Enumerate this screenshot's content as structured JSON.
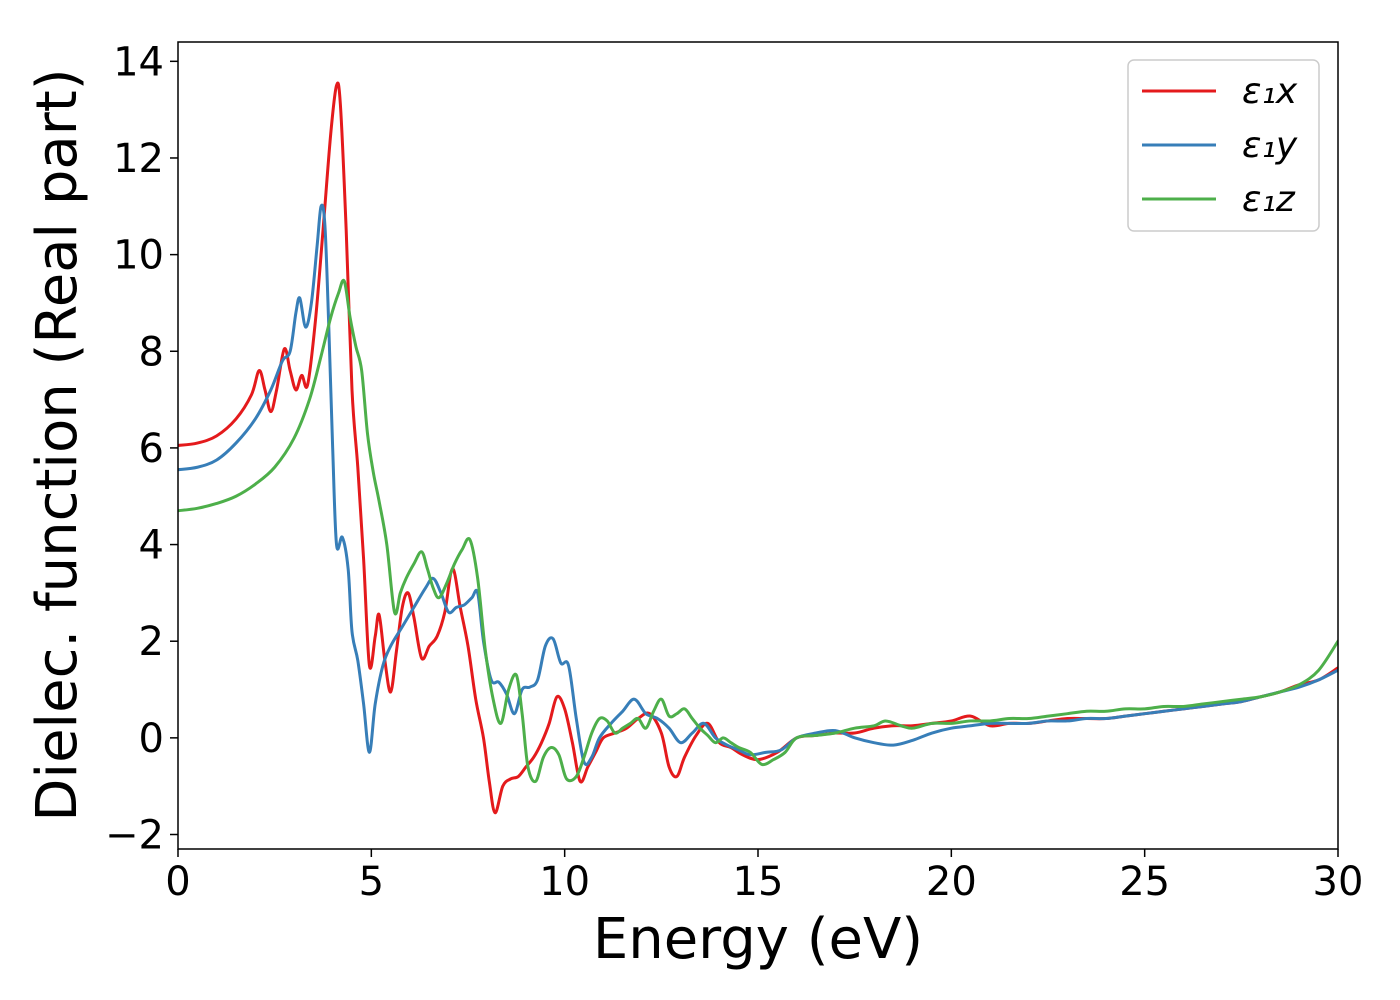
{
  "chart_data": {
    "type": "line",
    "xlabel": "Energy (eV)",
    "ylabel": "Dielec. function (Real part)",
    "xlim": [
      0,
      30
    ],
    "ylim": [
      -2.3,
      14.4
    ],
    "xticks": [
      0,
      5,
      10,
      15,
      20,
      25,
      30
    ],
    "xtick_labels": [
      "0",
      "5",
      "10",
      "15",
      "20",
      "25",
      "30"
    ],
    "yticks": [
      -2,
      0,
      2,
      4,
      6,
      8,
      10,
      12,
      14
    ],
    "ytick_labels": [
      "−2",
      "0",
      "2",
      "4",
      "6",
      "8",
      "10",
      "12",
      "14"
    ],
    "grid": false,
    "legend_position": "top-right",
    "series": [
      {
        "name": "ε₁x",
        "color": "#e41a1c",
        "points": [
          [
            0,
            6.05
          ],
          [
            0.5,
            6.1
          ],
          [
            1.0,
            6.25
          ],
          [
            1.5,
            6.6
          ],
          [
            1.9,
            7.1
          ],
          [
            2.1,
            7.6
          ],
          [
            2.25,
            7.2
          ],
          [
            2.4,
            6.75
          ],
          [
            2.55,
            7.2
          ],
          [
            2.75,
            8.05
          ],
          [
            2.9,
            7.6
          ],
          [
            3.05,
            7.2
          ],
          [
            3.2,
            7.5
          ],
          [
            3.35,
            7.3
          ],
          [
            3.55,
            8.6
          ],
          [
            3.75,
            10.5
          ],
          [
            3.95,
            12.5
          ],
          [
            4.1,
            13.5
          ],
          [
            4.2,
            13.1
          ],
          [
            4.35,
            10.5
          ],
          [
            4.5,
            7.2
          ],
          [
            4.65,
            5.6
          ],
          [
            4.8,
            3.7
          ],
          [
            4.95,
            1.5
          ],
          [
            5.1,
            2.1
          ],
          [
            5.2,
            2.55
          ],
          [
            5.35,
            1.6
          ],
          [
            5.5,
            0.95
          ],
          [
            5.65,
            1.8
          ],
          [
            5.8,
            2.7
          ],
          [
            5.95,
            3.0
          ],
          [
            6.1,
            2.5
          ],
          [
            6.3,
            1.65
          ],
          [
            6.5,
            1.9
          ],
          [
            6.7,
            2.1
          ],
          [
            6.9,
            2.6
          ],
          [
            7.1,
            3.5
          ],
          [
            7.3,
            2.7
          ],
          [
            7.5,
            1.9
          ],
          [
            7.7,
            0.8
          ],
          [
            7.9,
            0.0
          ],
          [
            8.05,
            -0.9
          ],
          [
            8.2,
            -1.55
          ],
          [
            8.4,
            -1.0
          ],
          [
            8.6,
            -0.85
          ],
          [
            8.8,
            -0.8
          ],
          [
            9.0,
            -0.6
          ],
          [
            9.2,
            -0.4
          ],
          [
            9.4,
            -0.1
          ],
          [
            9.6,
            0.3
          ],
          [
            9.8,
            0.85
          ],
          [
            10.0,
            0.6
          ],
          [
            10.2,
            -0.1
          ],
          [
            10.4,
            -0.9
          ],
          [
            10.6,
            -0.6
          ],
          [
            10.8,
            -0.3
          ],
          [
            11.0,
            0.0
          ],
          [
            11.3,
            0.1
          ],
          [
            11.6,
            0.2
          ],
          [
            11.9,
            0.4
          ],
          [
            12.2,
            0.5
          ],
          [
            12.5,
            0.1
          ],
          [
            12.7,
            -0.6
          ],
          [
            12.9,
            -0.8
          ],
          [
            13.1,
            -0.4
          ],
          [
            13.4,
            0.05
          ],
          [
            13.7,
            0.3
          ],
          [
            14.0,
            -0.1
          ],
          [
            14.3,
            -0.2
          ],
          [
            14.6,
            -0.35
          ],
          [
            15.0,
            -0.45
          ],
          [
            15.5,
            -0.3
          ],
          [
            16.0,
            0.0
          ],
          [
            16.5,
            0.05
          ],
          [
            17.0,
            0.1
          ],
          [
            17.5,
            0.1
          ],
          [
            18.0,
            0.2
          ],
          [
            18.5,
            0.25
          ],
          [
            19.0,
            0.25
          ],
          [
            19.5,
            0.3
          ],
          [
            20.0,
            0.35
          ],
          [
            20.5,
            0.45
          ],
          [
            21.0,
            0.25
          ],
          [
            21.5,
            0.3
          ],
          [
            22.0,
            0.3
          ],
          [
            22.5,
            0.35
          ],
          [
            23.0,
            0.4
          ],
          [
            23.5,
            0.4
          ],
          [
            24.0,
            0.4
          ],
          [
            24.5,
            0.45
          ],
          [
            25.0,
            0.5
          ],
          [
            25.5,
            0.55
          ],
          [
            26.0,
            0.6
          ],
          [
            26.5,
            0.65
          ],
          [
            27.0,
            0.7
          ],
          [
            27.5,
            0.75
          ],
          [
            28.0,
            0.85
          ],
          [
            28.5,
            0.95
          ],
          [
            29.0,
            1.1
          ],
          [
            29.5,
            1.2
          ],
          [
            30.0,
            1.45
          ]
        ]
      },
      {
        "name": "ε₁y",
        "color": "#377eb8",
        "points": [
          [
            0,
            5.55
          ],
          [
            0.5,
            5.6
          ],
          [
            1.0,
            5.75
          ],
          [
            1.5,
            6.1
          ],
          [
            2.0,
            6.6
          ],
          [
            2.4,
            7.2
          ],
          [
            2.7,
            7.8
          ],
          [
            2.9,
            8.0
          ],
          [
            3.05,
            8.8
          ],
          [
            3.15,
            9.1
          ],
          [
            3.3,
            8.5
          ],
          [
            3.45,
            9.0
          ],
          [
            3.6,
            10.2
          ],
          [
            3.7,
            11.0
          ],
          [
            3.8,
            10.6
          ],
          [
            3.9,
            8.5
          ],
          [
            4.0,
            6.0
          ],
          [
            4.1,
            4.0
          ],
          [
            4.25,
            4.15
          ],
          [
            4.4,
            3.5
          ],
          [
            4.5,
            2.2
          ],
          [
            4.65,
            1.6
          ],
          [
            4.8,
            0.7
          ],
          [
            4.95,
            -0.3
          ],
          [
            5.1,
            0.7
          ],
          [
            5.3,
            1.5
          ],
          [
            5.5,
            1.9
          ],
          [
            5.8,
            2.3
          ],
          [
            6.1,
            2.7
          ],
          [
            6.4,
            3.1
          ],
          [
            6.6,
            3.3
          ],
          [
            6.8,
            3.0
          ],
          [
            7.0,
            2.6
          ],
          [
            7.2,
            2.7
          ],
          [
            7.4,
            2.75
          ],
          [
            7.6,
            2.9
          ],
          [
            7.75,
            3.0
          ],
          [
            7.9,
            2.0
          ],
          [
            8.1,
            1.2
          ],
          [
            8.3,
            1.15
          ],
          [
            8.5,
            0.9
          ],
          [
            8.7,
            0.5
          ],
          [
            8.9,
            1.0
          ],
          [
            9.1,
            1.05
          ],
          [
            9.3,
            1.2
          ],
          [
            9.5,
            1.9
          ],
          [
            9.7,
            2.05
          ],
          [
            9.9,
            1.55
          ],
          [
            10.1,
            1.5
          ],
          [
            10.3,
            0.4
          ],
          [
            10.5,
            -0.5
          ],
          [
            10.7,
            -0.4
          ],
          [
            10.9,
            0.0
          ],
          [
            11.2,
            0.3
          ],
          [
            11.5,
            0.55
          ],
          [
            11.8,
            0.8
          ],
          [
            12.1,
            0.5
          ],
          [
            12.4,
            0.4
          ],
          [
            12.7,
            0.2
          ],
          [
            13.0,
            -0.1
          ],
          [
            13.3,
            0.1
          ],
          [
            13.6,
            0.3
          ],
          [
            13.9,
            0.0
          ],
          [
            14.2,
            -0.15
          ],
          [
            14.5,
            -0.25
          ],
          [
            14.8,
            -0.35
          ],
          [
            15.2,
            -0.3
          ],
          [
            15.6,
            -0.25
          ],
          [
            16.0,
            0.0
          ],
          [
            16.5,
            0.1
          ],
          [
            17.0,
            0.15
          ],
          [
            17.5,
            0.0
          ],
          [
            18.0,
            -0.1
          ],
          [
            18.5,
            -0.15
          ],
          [
            19.0,
            -0.05
          ],
          [
            19.5,
            0.1
          ],
          [
            20.0,
            0.2
          ],
          [
            20.5,
            0.25
          ],
          [
            21.0,
            0.3
          ],
          [
            21.5,
            0.3
          ],
          [
            22.0,
            0.3
          ],
          [
            22.5,
            0.35
          ],
          [
            23.0,
            0.35
          ],
          [
            23.5,
            0.4
          ],
          [
            24.0,
            0.4
          ],
          [
            24.5,
            0.45
          ],
          [
            25.0,
            0.5
          ],
          [
            25.5,
            0.55
          ],
          [
            26.0,
            0.6
          ],
          [
            26.5,
            0.65
          ],
          [
            27.0,
            0.7
          ],
          [
            27.5,
            0.75
          ],
          [
            28.0,
            0.85
          ],
          [
            28.5,
            0.95
          ],
          [
            29.0,
            1.05
          ],
          [
            29.5,
            1.2
          ],
          [
            30.0,
            1.4
          ]
        ]
      },
      {
        "name": "ε₁z",
        "color": "#4daf4a",
        "points": [
          [
            0,
            4.7
          ],
          [
            0.5,
            4.75
          ],
          [
            1.0,
            4.85
          ],
          [
            1.5,
            5.0
          ],
          [
            2.0,
            5.25
          ],
          [
            2.5,
            5.6
          ],
          [
            3.0,
            6.2
          ],
          [
            3.4,
            7.0
          ],
          [
            3.7,
            7.9
          ],
          [
            3.95,
            8.7
          ],
          [
            4.15,
            9.2
          ],
          [
            4.3,
            9.45
          ],
          [
            4.45,
            8.7
          ],
          [
            4.6,
            8.1
          ],
          [
            4.75,
            7.6
          ],
          [
            4.9,
            6.3
          ],
          [
            5.05,
            5.5
          ],
          [
            5.2,
            4.9
          ],
          [
            5.4,
            4.0
          ],
          [
            5.6,
            2.6
          ],
          [
            5.75,
            3.0
          ],
          [
            5.9,
            3.3
          ],
          [
            6.1,
            3.6
          ],
          [
            6.3,
            3.85
          ],
          [
            6.45,
            3.5
          ],
          [
            6.6,
            3.1
          ],
          [
            6.75,
            2.9
          ],
          [
            6.95,
            3.2
          ],
          [
            7.15,
            3.6
          ],
          [
            7.35,
            3.9
          ],
          [
            7.55,
            4.1
          ],
          [
            7.75,
            3.3
          ],
          [
            7.95,
            1.8
          ],
          [
            8.15,
            0.8
          ],
          [
            8.35,
            0.3
          ],
          [
            8.55,
            1.0
          ],
          [
            8.75,
            1.3
          ],
          [
            8.9,
            0.5
          ],
          [
            9.05,
            -0.6
          ],
          [
            9.25,
            -0.9
          ],
          [
            9.45,
            -0.4
          ],
          [
            9.65,
            -0.2
          ],
          [
            9.85,
            -0.35
          ],
          [
            10.05,
            -0.85
          ],
          [
            10.3,
            -0.8
          ],
          [
            10.5,
            -0.4
          ],
          [
            10.7,
            0.1
          ],
          [
            10.9,
            0.4
          ],
          [
            11.1,
            0.35
          ],
          [
            11.3,
            0.1
          ],
          [
            11.5,
            0.2
          ],
          [
            11.7,
            0.3
          ],
          [
            11.9,
            0.4
          ],
          [
            12.1,
            0.2
          ],
          [
            12.3,
            0.55
          ],
          [
            12.5,
            0.8
          ],
          [
            12.7,
            0.45
          ],
          [
            12.9,
            0.5
          ],
          [
            13.1,
            0.6
          ],
          [
            13.3,
            0.4
          ],
          [
            13.5,
            0.2
          ],
          [
            13.7,
            0.05
          ],
          [
            13.9,
            -0.1
          ],
          [
            14.1,
            0.0
          ],
          [
            14.3,
            -0.1
          ],
          [
            14.5,
            -0.2
          ],
          [
            14.8,
            -0.3
          ],
          [
            15.1,
            -0.55
          ],
          [
            15.4,
            -0.45
          ],
          [
            15.7,
            -0.3
          ],
          [
            16.0,
            0.0
          ],
          [
            16.5,
            0.05
          ],
          [
            17.0,
            0.1
          ],
          [
            17.5,
            0.2
          ],
          [
            18.0,
            0.25
          ],
          [
            18.3,
            0.35
          ],
          [
            18.7,
            0.25
          ],
          [
            19.0,
            0.2
          ],
          [
            19.5,
            0.3
          ],
          [
            20.0,
            0.3
          ],
          [
            20.5,
            0.35
          ],
          [
            21.0,
            0.35
          ],
          [
            21.5,
            0.4
          ],
          [
            22.0,
            0.4
          ],
          [
            22.5,
            0.45
          ],
          [
            23.0,
            0.5
          ],
          [
            23.5,
            0.55
          ],
          [
            24.0,
            0.55
          ],
          [
            24.5,
            0.6
          ],
          [
            25.0,
            0.6
          ],
          [
            25.5,
            0.65
          ],
          [
            26.0,
            0.65
          ],
          [
            26.5,
            0.7
          ],
          [
            27.0,
            0.75
          ],
          [
            27.5,
            0.8
          ],
          [
            28.0,
            0.85
          ],
          [
            28.5,
            0.95
          ],
          [
            29.0,
            1.1
          ],
          [
            29.5,
            1.4
          ],
          [
            30.0,
            2.0
          ]
        ]
      }
    ]
  }
}
